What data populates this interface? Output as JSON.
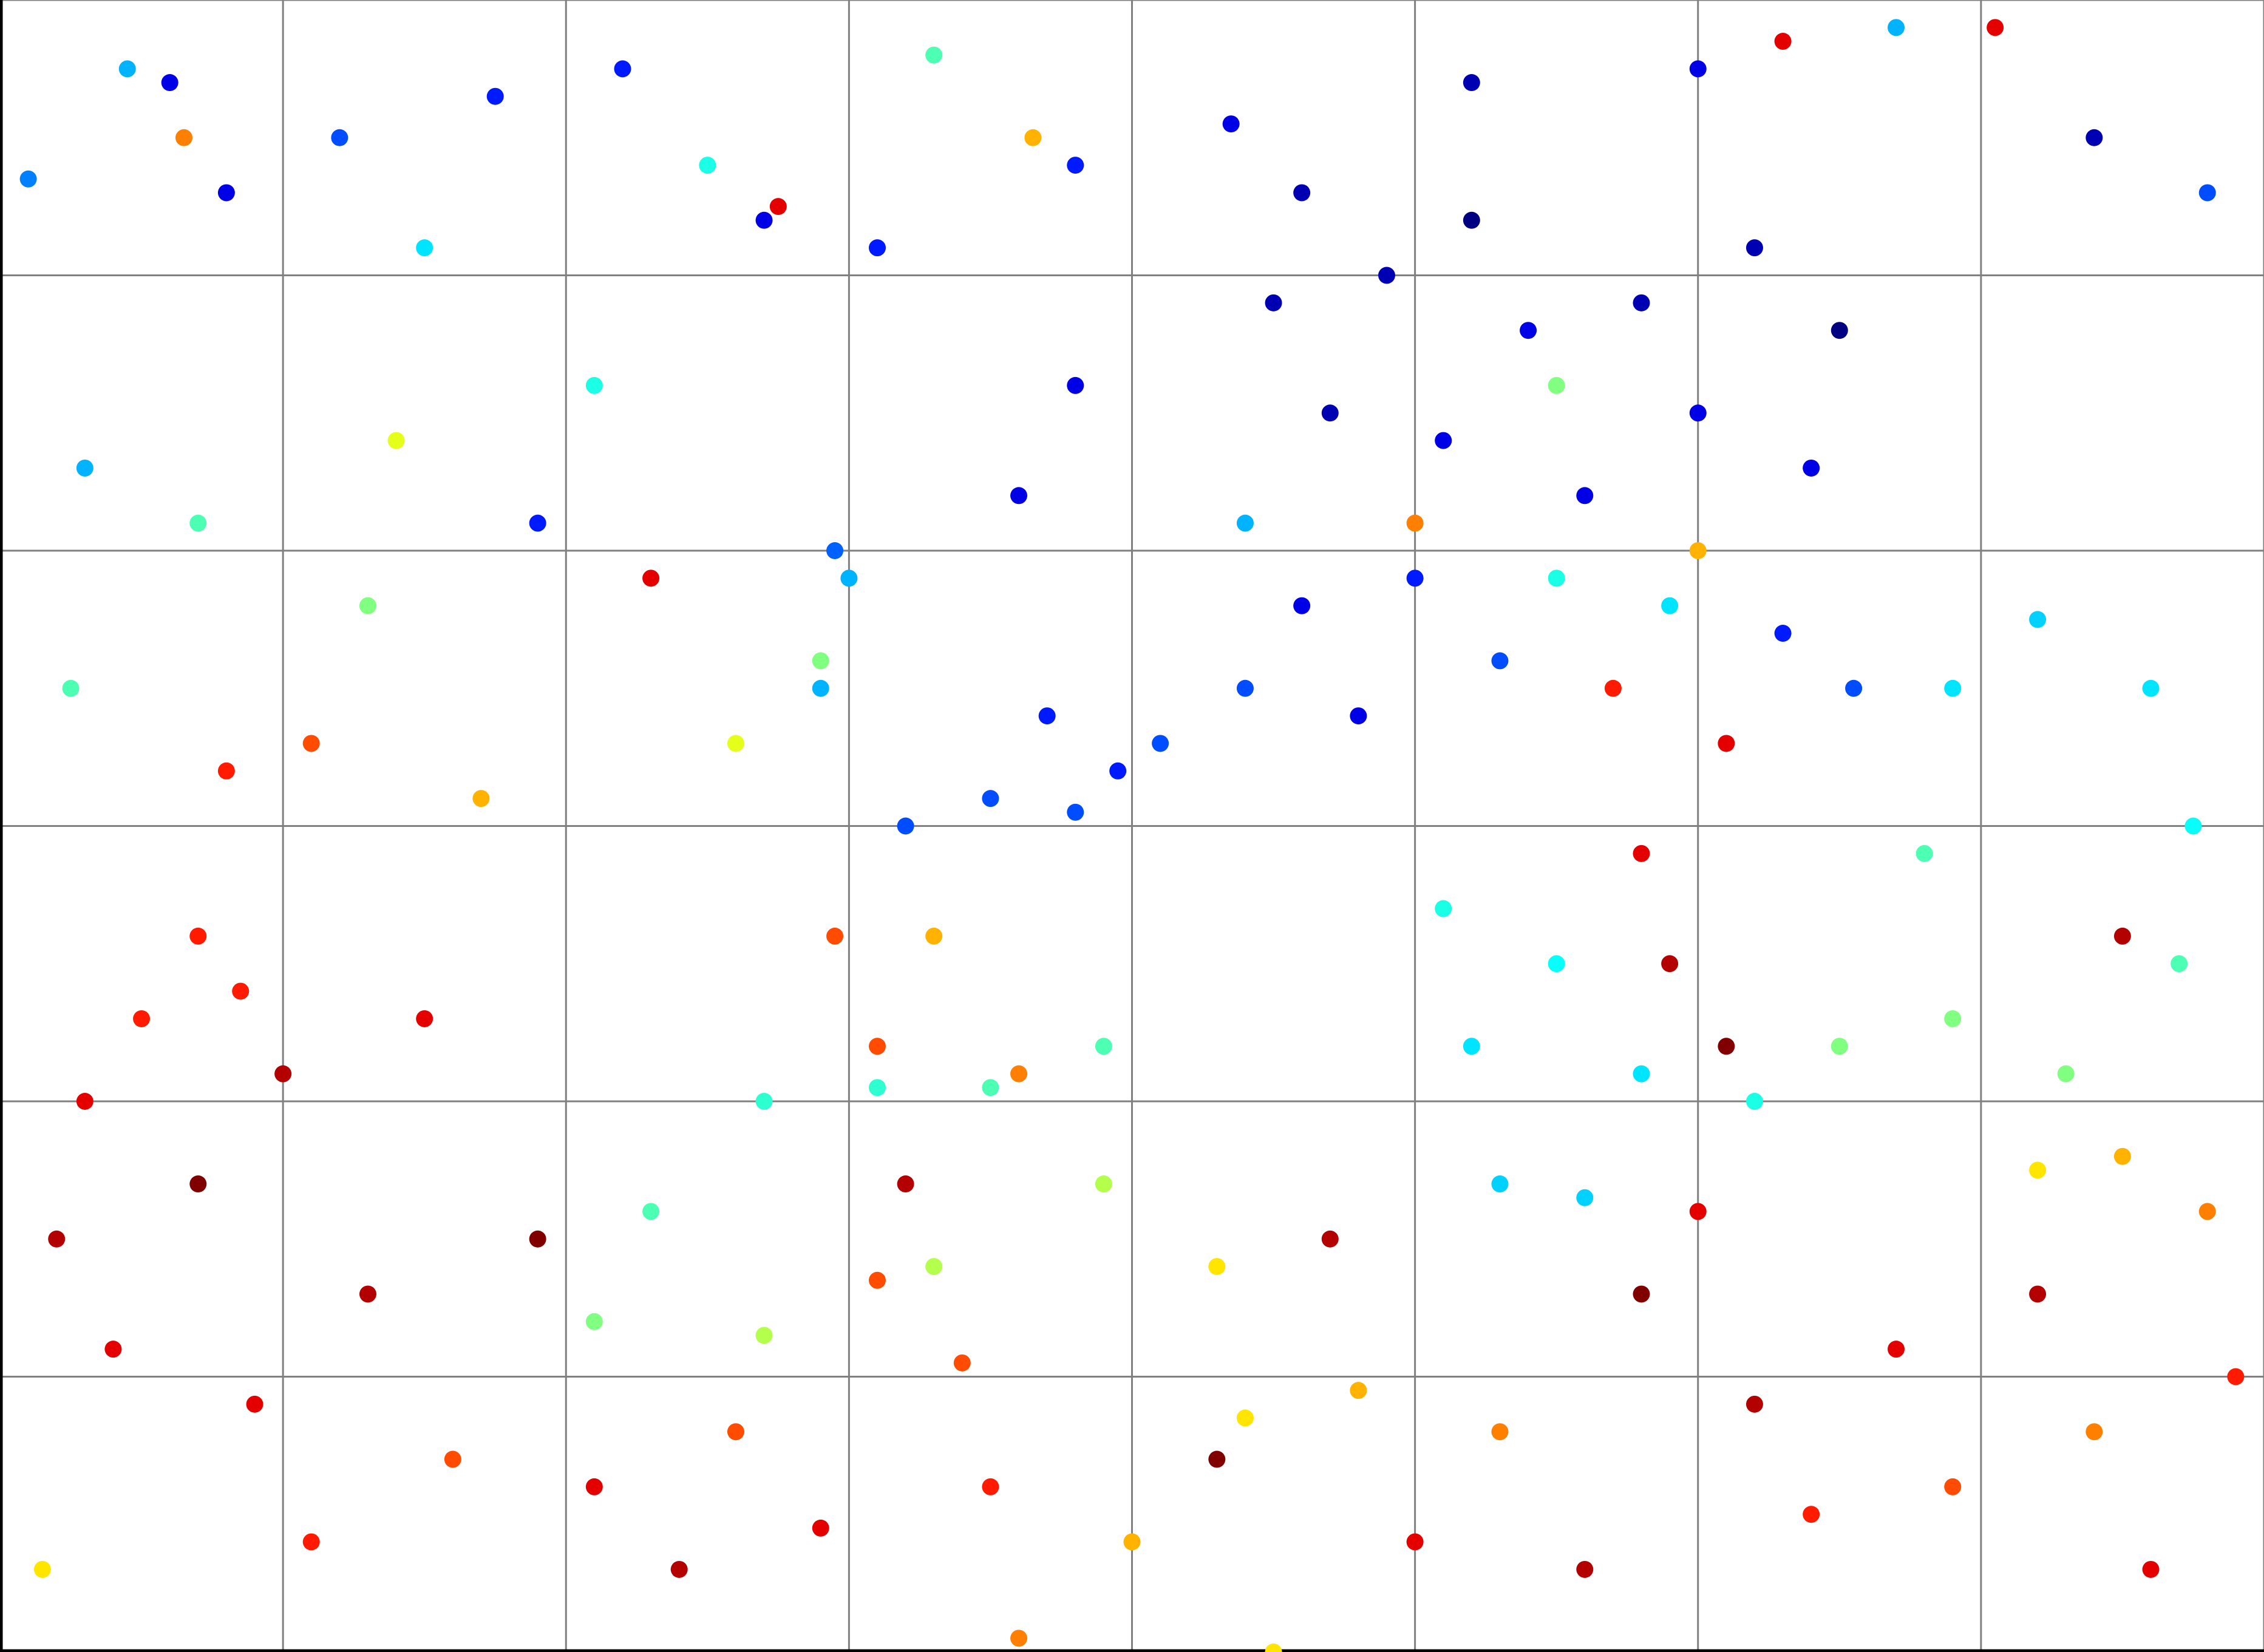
{
  "chart_data": {
    "type": "scatter",
    "colormap": "jet",
    "clim": [
      0,
      1
    ],
    "xlim": [
      0,
      8
    ],
    "ylim": [
      0,
      6
    ],
    "xticks": [
      0,
      1,
      2,
      3,
      4,
      5,
      6,
      7,
      8
    ],
    "yticks": [
      0,
      1,
      2,
      3,
      4,
      5,
      6
    ],
    "grid": true,
    "x": [
      0.45,
      0.6,
      1.2,
      1.75,
      2.2,
      2.7,
      3.3,
      3.1,
      0.1,
      0.8,
      1.5,
      2.5,
      3.8,
      4.35,
      4.6,
      5.2,
      6.0,
      6.7,
      7.4,
      7.8,
      6.3,
      7.05,
      2.75,
      3.65,
      0.65,
      0.3,
      0.7,
      1.4,
      1.3,
      1.9,
      2.3,
      2.1,
      2.9,
      3.0,
      3.6,
      3.8,
      0.8,
      0.25,
      1.1,
      2.6,
      1.7,
      4.5,
      4.7,
      4.9,
      5.1,
      5.2,
      5.4,
      5.6,
      5.8,
      6.0,
      6.2,
      6.4,
      6.5,
      4.6,
      4.8,
      5.0,
      5.3,
      5.5,
      5.7,
      5.9,
      6.1,
      6.3,
      6.55,
      5.0,
      5.5,
      6.0,
      4.4,
      3.2,
      3.5,
      3.8,
      4.1,
      4.4,
      3.7,
      3.95,
      2.95,
      2.9,
      7.2,
      7.6,
      7.75,
      7.7,
      7.3,
      6.9,
      6.8,
      6.9,
      5.2,
      5.3,
      5.6,
      5.8,
      6.2,
      6.5,
      5.1,
      5.5,
      2.3,
      2.7,
      3.1,
      3.5,
      3.9,
      2.1,
      2.7,
      3.3,
      3.9,
      0.5,
      0.7,
      0.85,
      2.95,
      3.1,
      3.6,
      3.3,
      3.1,
      3.4,
      7.5,
      7.8,
      7.2,
      4.3,
      4.4,
      4.8,
      0.2,
      0.4,
      0.7,
      0.9,
      1.1,
      1.3,
      1.6,
      1.9,
      2.1,
      2.4,
      2.6,
      2.9,
      3.2,
      3.5,
      4.0,
      4.3,
      4.7,
      5.0,
      5.3,
      5.6,
      5.8,
      6.0,
      6.2,
      6.4,
      6.7,
      6.9,
      7.2,
      7.4,
      7.6,
      7.9,
      5.9,
      6.1,
      5.8,
      0.3,
      1.0,
      1.5,
      7.5,
      0.15,
      3.6,
      4.5
    ],
    "values": [
      5.75,
      5.7,
      5.5,
      5.65,
      5.75,
      5.2,
      5.8,
      5.1,
      5.35,
      5.3,
      5.1,
      5.4,
      5.4,
      5.55,
      5.3,
      5.7,
      5.75,
      5.9,
      5.5,
      5.3,
      5.85,
      5.9,
      5.25,
      5.5,
      5.5,
      4.3,
      4.1,
      4.4,
      3.8,
      4.1,
      3.9,
      4.6,
      3.6,
      3.9,
      4.2,
      4.6,
      3.2,
      3.5,
      3.3,
      3.3,
      3.1,
      4.9,
      4.5,
      5.0,
      4.4,
      5.2,
      4.8,
      4.2,
      4.9,
      4.5,
      5.1,
      4.3,
      4.8,
      3.8,
      3.4,
      3.9,
      3.6,
      3.9,
      3.5,
      3.8,
      3.3,
      3.7,
      3.5,
      4.1,
      4.6,
      4.0,
      4.1,
      3.0,
      3.1,
      3.05,
      3.3,
      3.5,
      3.4,
      3.2,
      4.0,
      3.5,
      3.75,
      3.5,
      3.0,
      2.5,
      2.1,
      2.3,
      2.9,
      3.5,
      2.2,
      1.7,
      1.65,
      2.1,
      2.0,
      2.2,
      2.7,
      2.5,
      1.6,
      2.0,
      2.05,
      2.05,
      2.2,
      1.2,
      1.15,
      1.4,
      1.7,
      2.3,
      2.6,
      2.4,
      2.6,
      2.2,
      2.1,
      2.6,
      1.35,
      1.05,
      1.8,
      1.6,
      1.75,
      1.4,
      0.85,
      0.95,
      1.5,
      1.1,
      1.7,
      0.9,
      0.4,
      1.3,
      0.7,
      1.5,
      0.6,
      0.3,
      0.8,
      0.45,
      1.7,
      0.6,
      0.4,
      0.7,
      1.5,
      0.4,
      0.8,
      0.3,
      1.3,
      1.6,
      0.9,
      0.5,
      1.1,
      0.6,
      1.3,
      0.8,
      0.3,
      1.0,
      2.5,
      2.2,
      2.9,
      2.0,
      2.1,
      2.3,
      2.6,
      0.3,
      0.05,
      0.0
    ],
    "color_values": [
      0.3,
      0.1,
      0.2,
      0.15,
      0.15,
      0.1,
      0.45,
      0.15,
      0.25,
      0.1,
      0.35,
      0.4,
      0.15,
      0.1,
      0.05,
      0.05,
      0.1,
      0.3,
      0.05,
      0.2,
      0.9,
      0.9,
      0.9,
      0.7,
      0.75,
      0.3,
      0.45,
      0.6,
      0.5,
      0.15,
      0.9,
      0.4,
      0.5,
      0.3,
      0.1,
      0.1,
      0.85,
      0.45,
      0.8,
      0.6,
      0.7,
      0.05,
      0.05,
      0.05,
      0.1,
      0.0,
      0.1,
      0.1,
      0.05,
      0.1,
      0.05,
      0.1,
      0.0,
      0.1,
      0.1,
      0.15,
      0.2,
      0.4,
      0.85,
      0.35,
      0.9,
      0.15,
      0.2,
      0.75,
      0.5,
      0.7,
      0.3,
      0.2,
      0.2,
      0.2,
      0.2,
      0.2,
      0.15,
      0.15,
      0.22,
      0.3,
      0.33,
      0.35,
      0.38,
      0.45,
      0.5,
      0.5,
      0.45,
      0.35,
      0.35,
      0.33,
      0.33,
      0.35,
      0.4,
      0.5,
      0.4,
      0.38,
      0.45,
      0.42,
      0.42,
      0.45,
      0.45,
      0.5,
      0.55,
      0.55,
      0.55,
      0.85,
      0.85,
      0.85,
      0.8,
      0.8,
      0.75,
      0.7,
      0.8,
      0.8,
      0.7,
      0.75,
      0.65,
      0.65,
      0.65,
      0.7,
      0.95,
      0.9,
      1.0,
      0.9,
      0.85,
      0.95,
      0.8,
      1.0,
      0.9,
      0.95,
      0.8,
      0.9,
      0.95,
      0.85,
      0.7,
      1.0,
      0.95,
      0.9,
      0.75,
      0.95,
      1.0,
      0.9,
      0.95,
      0.85,
      0.9,
      0.8,
      0.95,
      0.75,
      0.9,
      0.85,
      0.95,
      1.0,
      0.9,
      0.9,
      0.95,
      0.9,
      0.95,
      0.65,
      0.75,
      0.65
    ]
  }
}
